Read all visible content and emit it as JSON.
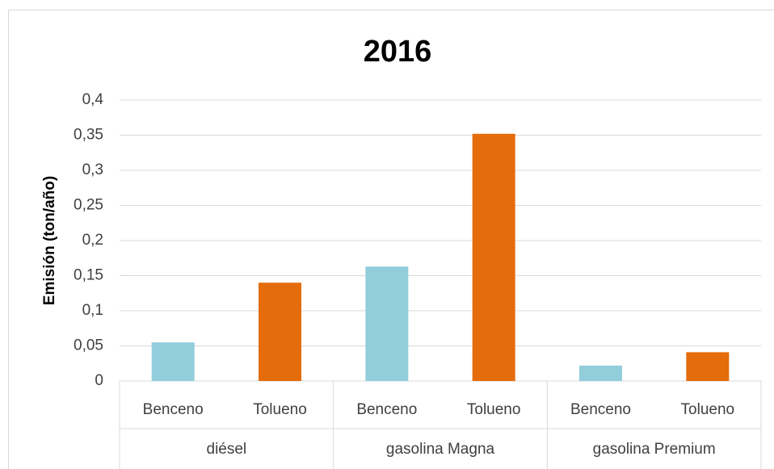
{
  "chart_data": {
    "type": "bar",
    "title": "2016",
    "y_label": "Emisión (ton/año)",
    "categories": [
      "Benceno",
      "Tolueno",
      "Benceno",
      "Tolueno",
      "Benceno",
      "Tolueno"
    ],
    "groups": [
      "diésel",
      "gasolina Magna",
      "gasolina Premium"
    ],
    "values": [
      0.055,
      0.14,
      0.163,
      0.352,
      0.022,
      0.041
    ],
    "colors": [
      "#92cddc",
      "#e46c0a",
      "#92cddc",
      "#e46c0a",
      "#92cddc",
      "#e46c0a"
    ],
    "ylim": [
      0,
      0.4
    ],
    "yticks": [
      0,
      {
        "value": 0.05,
        "label": "0,05"
      },
      {
        "value": 0.1,
        "label": "0,1"
      },
      {
        "value": 0.15,
        "label": "0,15"
      },
      {
        "value": 0.2,
        "label": "0,2"
      },
      {
        "value": 0.25,
        "label": "0,25"
      },
      {
        "value": 0.3,
        "label": "0,3"
      },
      {
        "value": 0.35,
        "label": "0,35"
      },
      {
        "value": 0.4,
        "label": "0,4"
      }
    ],
    "grid": true
  }
}
